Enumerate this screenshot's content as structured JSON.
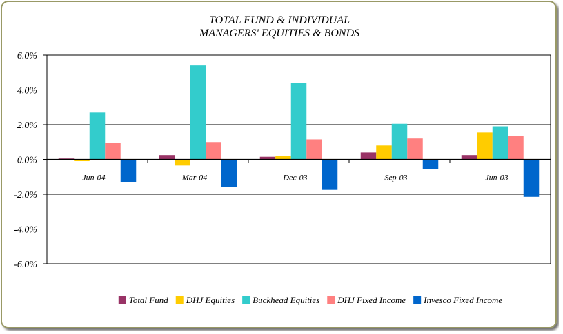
{
  "chart_data": {
    "type": "bar",
    "title_lines": [
      "TOTAL FUND  & INDIVIDUAL",
      "MANAGERS' EQUITIES & BONDS"
    ],
    "categories": [
      "Jun-04",
      "Mar-04",
      "Dec-03",
      "Sep-03",
      "Jun-03"
    ],
    "series": [
      {
        "name": "Total Fund",
        "color": "#993366",
        "values": [
          0.05,
          0.25,
          0.15,
          0.4,
          0.25
        ]
      },
      {
        "name": "DHJ Equities",
        "color": "#ffcc00",
        "values": [
          -0.1,
          -0.35,
          0.2,
          0.8,
          1.55
        ]
      },
      {
        "name": "Buckhead Equities",
        "color": "#33cccc",
        "values": [
          2.7,
          5.4,
          4.4,
          2.05,
          1.9
        ]
      },
      {
        "name": "DHJ Fixed Income",
        "color": "#ff8080",
        "values": [
          0.95,
          1.0,
          1.15,
          1.2,
          1.35
        ]
      },
      {
        "name": "Invesco Fixed Income",
        "color": "#0066cc",
        "values": [
          -1.3,
          -1.6,
          -1.75,
          -0.55,
          -2.15
        ]
      }
    ],
    "yticks": [
      "6.0%",
      "4.0%",
      "2.0%",
      "0.0%",
      "-2.0%",
      "-4.0%",
      "-6.0%"
    ],
    "ylim": [
      -6,
      6
    ],
    "ylabel": "",
    "xlabel": "",
    "grid": true,
    "legend_position": "bottom"
  }
}
